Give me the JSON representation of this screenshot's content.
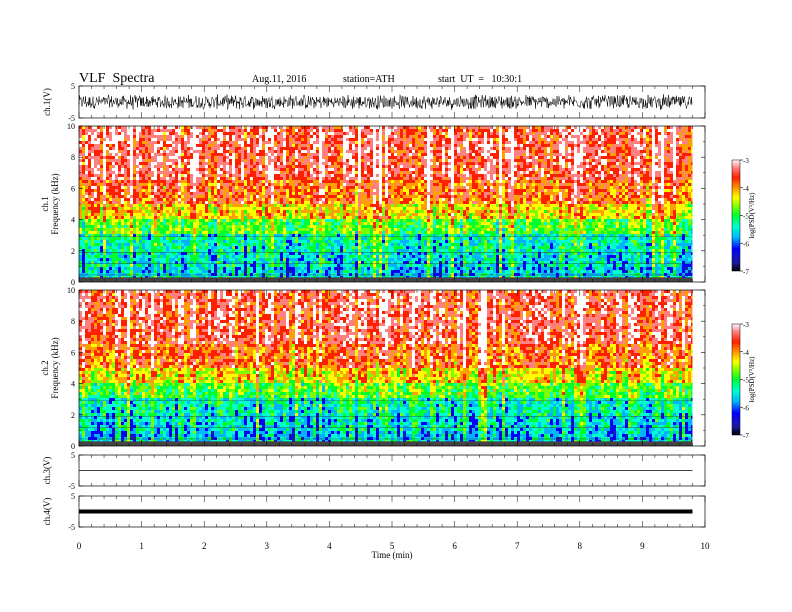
{
  "header": {
    "title": "VLF  Spectra",
    "date": "Aug.11, 2016",
    "station": "station=ATH",
    "start_ut": "start  UT  =   10:30:1"
  },
  "chart_data": [
    {
      "type": "line",
      "name": "ch1-waveform",
      "ylabel": "ch.1(V)",
      "ylim": [
        -5,
        5
      ],
      "yticks": [
        "5",
        "-5"
      ],
      "xlim": [
        0,
        10
      ],
      "x_end": 9.8,
      "amplitude": 2.5
    },
    {
      "type": "heatmap",
      "name": "ch1-spectrogram",
      "ylabel": "ch.1",
      "ylabel2": "Frequency  (kHz)",
      "ylim": [
        0,
        10
      ],
      "yticks": [
        "0",
        "2",
        "4",
        "6",
        "8",
        "10"
      ],
      "xlim": [
        0,
        10
      ],
      "x_end": 9.8,
      "colorbar": {
        "label": "log(PSD(V²/Hz)",
        "ticks": [
          "-3",
          "-4",
          "-5",
          "-6",
          "-7"
        ],
        "range": [
          -7,
          -3
        ]
      }
    },
    {
      "type": "heatmap",
      "name": "ch2-spectrogram",
      "ylabel": "ch.2",
      "ylabel2": "Frequency  (kHz)",
      "ylim": [
        0,
        10
      ],
      "yticks": [
        "0",
        "2",
        "4",
        "6",
        "8",
        "10"
      ],
      "xlim": [
        0,
        10
      ],
      "x_end": 9.8,
      "colorbar": {
        "label": "log(PSD(V²/Hz)",
        "ticks": [
          "-3",
          "-4",
          "-5",
          "-6",
          "-7"
        ],
        "range": [
          -7,
          -3
        ]
      }
    },
    {
      "type": "line",
      "name": "ch3-waveform",
      "ylabel": "ch.3(V)",
      "ylim": [
        -5,
        5
      ],
      "yticks": [
        "5",
        "-5"
      ],
      "xlim": [
        0,
        10
      ],
      "x_end": 9.8,
      "level": 0
    },
    {
      "type": "line",
      "name": "ch4-waveform",
      "ylabel": "ch.4(V)",
      "ylim": [
        -5,
        5
      ],
      "yticks": [
        "5",
        "-5"
      ],
      "xlim": [
        0,
        10
      ],
      "x_end": 9.8,
      "level": 0
    }
  ],
  "x_axis": {
    "label": "Time  (min)",
    "ticks": [
      "0",
      "1",
      "2",
      "3",
      "4",
      "5",
      "6",
      "7",
      "8",
      "9",
      "10"
    ]
  },
  "colors": {
    "spectrum": [
      "#000000",
      "#1a1aa8",
      "#0000ff",
      "#00b4ff",
      "#00ffcc",
      "#00ff30",
      "#7aff00",
      "#ffff00",
      "#ffa000",
      "#ff2000",
      "#ff8080",
      "#ffffff"
    ]
  }
}
